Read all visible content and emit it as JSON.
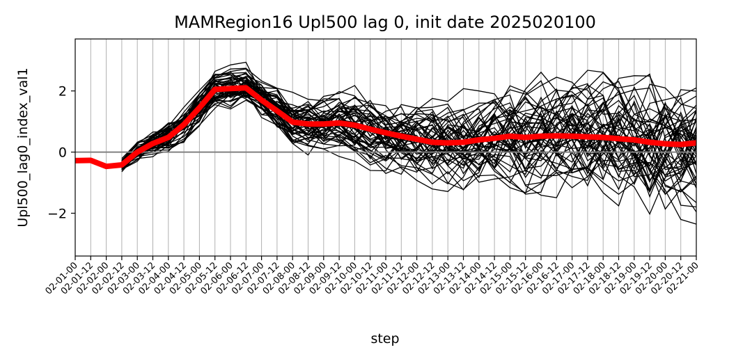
{
  "chart_data": {
    "type": "line",
    "title": "MAMRegion16 Upl500 lag 0, init date 2025020100",
    "xlabel": "step",
    "ylabel": "Upl500_lag0_index_val1",
    "x_ticks": [
      "02-01-00",
      "02-01-12",
      "02-02-00",
      "02-02-12",
      "02-03-00",
      "02-03-12",
      "02-04-00",
      "02-04-12",
      "02-05-00",
      "02-05-12",
      "02-06-00",
      "02-06-12",
      "02-07-00",
      "02-07-12",
      "02-08-00",
      "02-08-12",
      "02-09-00",
      "02-09-12",
      "02-10-00",
      "02-10-12",
      "02-11-00",
      "02-11-12",
      "02-12-00",
      "02-12-12",
      "02-13-00",
      "02-13-12",
      "02-14-00",
      "02-14-12",
      "02-15-00",
      "02-15-12",
      "02-16-00",
      "02-16-12",
      "02-17-00",
      "02-17-12",
      "02-18-00",
      "02-18-12",
      "02-19-00",
      "02-19-12",
      "02-20-00",
      "02-20-12",
      "02-21-00"
    ],
    "y_ticks": [
      -2,
      0,
      2
    ],
    "ylim": [
      -3.4,
      3.7
    ],
    "grid": "vertical",
    "reference_line": 0,
    "colors": {
      "members": "#000000",
      "mean": "#ff0000",
      "reference": "#808080",
      "grid": "#b0b0b0"
    },
    "ensemble_members": 50,
    "series": [
      {
        "name": "",
        "role": "ensemble-mean",
        "x": [
          "02-01-00",
          "02-01-12",
          "02-02-00",
          "02-02-12",
          "02-03-00",
          "02-03-12",
          "02-04-00",
          "02-04-12",
          "02-05-00",
          "02-05-12",
          "02-06-00",
          "02-06-12",
          "02-07-00",
          "02-07-12",
          "02-08-00",
          "02-08-12",
          "02-09-00",
          "02-09-12",
          "02-10-00",
          "02-10-12",
          "02-11-00",
          "02-11-12",
          "02-12-00",
          "02-12-12",
          "02-13-00",
          "02-13-12",
          "02-14-00",
          "02-14-12",
          "02-15-00",
          "02-15-12",
          "02-16-00",
          "02-16-12",
          "02-17-00",
          "02-17-12",
          "02-18-00",
          "02-18-12",
          "02-19-00",
          "02-19-12",
          "02-20-00",
          "02-20-12",
          "02-21-00"
        ],
        "values": [
          -0.28,
          -0.27,
          -0.47,
          -0.42,
          0.0,
          0.28,
          0.48,
          0.9,
          1.45,
          2.05,
          2.08,
          2.1,
          1.7,
          1.35,
          0.98,
          0.92,
          0.92,
          0.95,
          0.88,
          0.75,
          0.63,
          0.52,
          0.42,
          0.32,
          0.3,
          0.32,
          0.4,
          0.45,
          0.52,
          0.48,
          0.52,
          0.53,
          0.52,
          0.5,
          0.48,
          0.44,
          0.4,
          0.32,
          0.27,
          0.25,
          0.3
        ]
      }
    ]
  }
}
